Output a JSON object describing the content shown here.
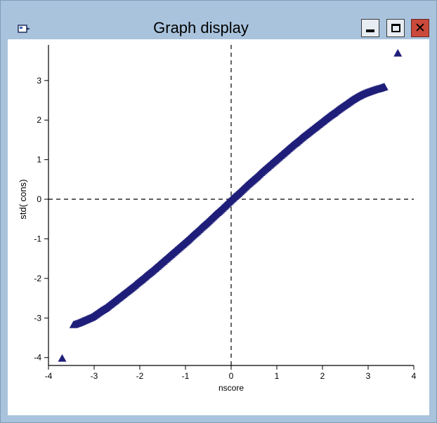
{
  "window": {
    "title": "Graph display",
    "app_icon": "graph-app-icon",
    "buttons": {
      "minimize": "minimize-icon",
      "maximize": "maximize-icon",
      "close": "close-icon"
    }
  },
  "chart_data": {
    "type": "scatter",
    "title": "",
    "xlabel": "nscore",
    "ylabel": "std( cons)",
    "xlim": [
      -4,
      4
    ],
    "ylim": [
      -4.2,
      3.9
    ],
    "x_ticks": [
      -4,
      -3,
      -2,
      -1,
      0,
      1,
      2,
      3,
      4
    ],
    "y_ticks": [
      -4,
      -3,
      -2,
      -1,
      0,
      1,
      2,
      3
    ],
    "x_tick_labels": [
      "-4",
      "-3",
      "-2",
      "-1",
      "0",
      "1",
      "2",
      "3",
      "4"
    ],
    "y_tick_labels": [
      "-4",
      "-3",
      "-2",
      "-1",
      "0",
      "1",
      "2",
      "3"
    ],
    "reference_lines": {
      "x": 0,
      "y": 0,
      "style": "dashed"
    },
    "grid": false,
    "marker": "triangle",
    "color": "#1f1f7a",
    "points": [
      [
        -3.7,
        -4.02
      ],
      [
        -3.45,
        -3.17
      ],
      [
        -3.35,
        -3.13
      ],
      [
        -3.25,
        -3.08
      ],
      [
        -3.15,
        -3.03
      ],
      [
        -3.05,
        -2.98
      ],
      [
        -2.95,
        -2.9
      ],
      [
        -2.85,
        -2.82
      ],
      [
        -2.75,
        -2.75
      ],
      [
        -2.65,
        -2.66
      ],
      [
        -2.55,
        -2.57
      ],
      [
        -2.45,
        -2.48
      ],
      [
        -2.35,
        -2.39
      ],
      [
        -2.25,
        -2.3
      ],
      [
        -2.15,
        -2.21
      ],
      [
        -2.05,
        -2.11
      ],
      [
        -1.95,
        -2.02
      ],
      [
        -1.85,
        -1.92
      ],
      [
        -1.75,
        -1.83
      ],
      [
        -1.65,
        -1.73
      ],
      [
        -1.55,
        -1.63
      ],
      [
        -1.45,
        -1.53
      ],
      [
        -1.35,
        -1.43
      ],
      [
        -1.25,
        -1.33
      ],
      [
        -1.15,
        -1.23
      ],
      [
        -1.05,
        -1.13
      ],
      [
        -0.95,
        -1.03
      ],
      [
        -0.85,
        -0.92
      ],
      [
        -0.75,
        -0.82
      ],
      [
        -0.65,
        -0.71
      ],
      [
        -0.55,
        -0.61
      ],
      [
        -0.45,
        -0.5
      ],
      [
        -0.35,
        -0.39
      ],
      [
        -0.25,
        -0.29
      ],
      [
        -0.15,
        -0.18
      ],
      [
        -0.05,
        -0.07
      ],
      [
        0.05,
        0.04
      ],
      [
        0.15,
        0.14
      ],
      [
        0.25,
        0.25
      ],
      [
        0.35,
        0.36
      ],
      [
        0.45,
        0.46
      ],
      [
        0.55,
        0.56
      ],
      [
        0.65,
        0.67
      ],
      [
        0.75,
        0.77
      ],
      [
        0.85,
        0.87
      ],
      [
        0.95,
        0.97
      ],
      [
        1.05,
        1.07
      ],
      [
        1.15,
        1.17
      ],
      [
        1.25,
        1.27
      ],
      [
        1.35,
        1.37
      ],
      [
        1.45,
        1.46
      ],
      [
        1.55,
        1.56
      ],
      [
        1.65,
        1.65
      ],
      [
        1.75,
        1.74
      ],
      [
        1.85,
        1.83
      ],
      [
        1.95,
        1.92
      ],
      [
        2.05,
        2.01
      ],
      [
        2.15,
        2.1
      ],
      [
        2.25,
        2.18
      ],
      [
        2.35,
        2.27
      ],
      [
        2.45,
        2.35
      ],
      [
        2.55,
        2.43
      ],
      [
        2.65,
        2.51
      ],
      [
        2.75,
        2.58
      ],
      [
        2.85,
        2.64
      ],
      [
        2.95,
        2.69
      ],
      [
        3.05,
        2.73
      ],
      [
        3.15,
        2.77
      ],
      [
        3.25,
        2.8
      ],
      [
        3.35,
        2.84
      ],
      [
        3.65,
        3.69
      ]
    ]
  }
}
